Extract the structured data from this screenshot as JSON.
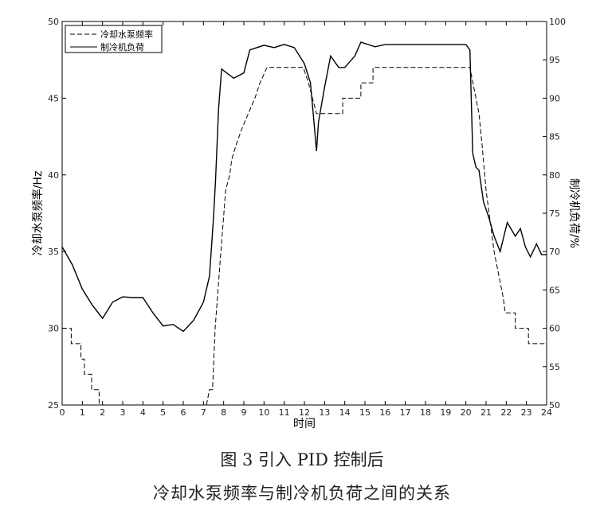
{
  "chart_data": {
    "type": "line",
    "title": "",
    "xlabel": "时间",
    "ylabel_left": "冷却水泵频率/Hz",
    "ylabel_right": "制冷机负荷/%",
    "xlim": [
      0,
      24
    ],
    "ylim_left": [
      25,
      50
    ],
    "ylim_right": [
      50,
      100
    ],
    "xticks": [
      0,
      1,
      2,
      3,
      4,
      5,
      6,
      7,
      8,
      9,
      10,
      11,
      12,
      13,
      14,
      15,
      16,
      17,
      18,
      19,
      20,
      21,
      22,
      23,
      24
    ],
    "yticks_left": [
      25,
      30,
      35,
      40,
      45,
      50
    ],
    "yticks_right": [
      50,
      55,
      60,
      65,
      70,
      75,
      80,
      85,
      90,
      95,
      100
    ],
    "grid": false,
    "legend_position": "top-left",
    "series": [
      {
        "name": "冷却水泵频率",
        "axis": "left",
        "style": "dashed",
        "color": "#000000",
        "points": [
          [
            0,
            30
          ],
          [
            0.45,
            30
          ],
          [
            0.45,
            29
          ],
          [
            0.93,
            29
          ],
          [
            0.93,
            28
          ],
          [
            1.1,
            28
          ],
          [
            1.1,
            27
          ],
          [
            1.46,
            27
          ],
          [
            1.46,
            26
          ],
          [
            1.83,
            26
          ],
          [
            1.83,
            25
          ],
          [
            2.0,
            25
          ],
          [
            2.0,
            24
          ],
          [
            7.1,
            24
          ],
          [
            7.15,
            25
          ],
          [
            7.3,
            26
          ],
          [
            7.45,
            26
          ],
          [
            7.58,
            30
          ],
          [
            7.85,
            34.8
          ],
          [
            8.1,
            39
          ],
          [
            8.3,
            40
          ],
          [
            8.4,
            41
          ],
          [
            8.63,
            42
          ],
          [
            8.9,
            43
          ],
          [
            9.22,
            44
          ],
          [
            9.55,
            45
          ],
          [
            9.8,
            46
          ],
          [
            10.15,
            47
          ],
          [
            11.95,
            47
          ],
          [
            12.2,
            46
          ],
          [
            12.4,
            45
          ],
          [
            12.6,
            44
          ],
          [
            13.9,
            44
          ],
          [
            13.9,
            45
          ],
          [
            14.8,
            45
          ],
          [
            14.8,
            46
          ],
          [
            15.4,
            46
          ],
          [
            15.4,
            47
          ],
          [
            20.2,
            47
          ],
          [
            20.35,
            46
          ],
          [
            20.5,
            45
          ],
          [
            20.65,
            44
          ],
          [
            20.8,
            42
          ],
          [
            21.0,
            39
          ],
          [
            21.2,
            37
          ],
          [
            21.4,
            35
          ],
          [
            21.55,
            34
          ],
          [
            21.7,
            33
          ],
          [
            21.85,
            32
          ],
          [
            21.95,
            31
          ],
          [
            22.45,
            31
          ],
          [
            22.45,
            30
          ],
          [
            23.1,
            30
          ],
          [
            23.1,
            29
          ],
          [
            24,
            29
          ]
        ]
      },
      {
        "name": "制冷机负荷",
        "axis": "right",
        "style": "solid",
        "color": "#000000",
        "points": [
          [
            0,
            70.6
          ],
          [
            0.5,
            68.3
          ],
          [
            1,
            65.1
          ],
          [
            1.5,
            63
          ],
          [
            2,
            61.3
          ],
          [
            2.5,
            63.4
          ],
          [
            3,
            64.1
          ],
          [
            3.5,
            64
          ],
          [
            4,
            64
          ],
          [
            4.5,
            62
          ],
          [
            5,
            60.3
          ],
          [
            5.5,
            60.5
          ],
          [
            6,
            59.6
          ],
          [
            6.5,
            61
          ],
          [
            7,
            63.4
          ],
          [
            7.3,
            66.8
          ],
          [
            7.5,
            74.5
          ],
          [
            7.6,
            79.3
          ],
          [
            7.75,
            88.6
          ],
          [
            7.9,
            93.8
          ],
          [
            8.5,
            92.6
          ],
          [
            9,
            93.3
          ],
          [
            9.3,
            96.3
          ],
          [
            10,
            96.9
          ],
          [
            10.5,
            96.6
          ],
          [
            11,
            97
          ],
          [
            11.5,
            96.6
          ],
          [
            12,
            94.5
          ],
          [
            12.3,
            92
          ],
          [
            12.45,
            87.6
          ],
          [
            12.6,
            83.1
          ],
          [
            12.7,
            86.9
          ],
          [
            13,
            91.4
          ],
          [
            13.3,
            95.5
          ],
          [
            13.7,
            94
          ],
          [
            14,
            94
          ],
          [
            14.5,
            95.5
          ],
          [
            14.8,
            97.3
          ],
          [
            15.5,
            96.7
          ],
          [
            16,
            97
          ],
          [
            17,
            97
          ],
          [
            18,
            97
          ],
          [
            19,
            97
          ],
          [
            20,
            97
          ],
          [
            20.2,
            96.3
          ],
          [
            20.34,
            82.8
          ],
          [
            20.5,
            81
          ],
          [
            20.65,
            80.6
          ],
          [
            20.87,
            76.5
          ],
          [
            21.13,
            74.5
          ],
          [
            21.4,
            72
          ],
          [
            21.7,
            70
          ],
          [
            22.05,
            73.8
          ],
          [
            22.45,
            72
          ],
          [
            22.7,
            73
          ],
          [
            22.95,
            70.6
          ],
          [
            23.2,
            69.3
          ],
          [
            23.5,
            71
          ],
          [
            23.75,
            69.6
          ],
          [
            24,
            69.6
          ]
        ]
      }
    ]
  },
  "caption": {
    "line1": "图 3 引入 PID 控制后",
    "line2": "冷却水泵频率与制冷机负荷之间的关系"
  }
}
